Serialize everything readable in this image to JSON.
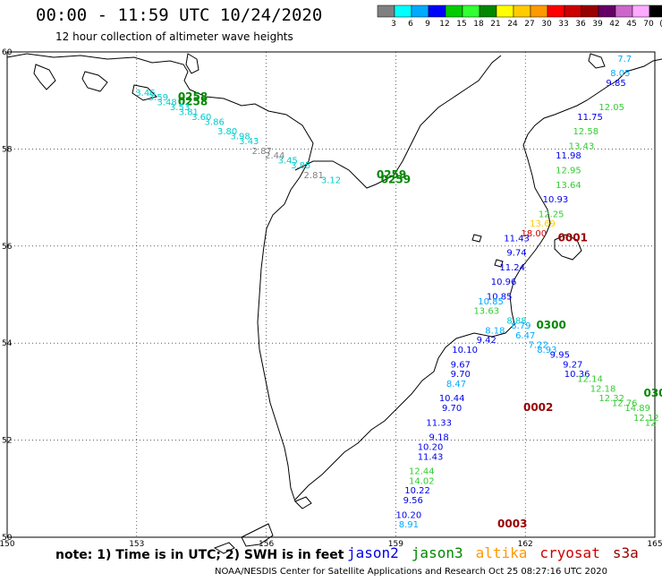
{
  "header": {
    "title": "00:00 - 11:59 UTC 10/24/2020",
    "subtitle": "12 hour collection of altimeter wave heights"
  },
  "colorbar": {
    "labels": [
      "3",
      "6",
      "9",
      "12",
      "15",
      "18",
      "21",
      "24",
      "27",
      "30",
      "33",
      "36",
      "39",
      "42",
      "45",
      "70",
      "(ft)"
    ],
    "colors": [
      "#808080",
      "#00ffff",
      "#00aaff",
      "#0000ff",
      "#00cc00",
      "#33ff33",
      "#008800",
      "#ffff00",
      "#ffcc00",
      "#ff9900",
      "#ff0000",
      "#cc0000",
      "#990000",
      "#660066",
      "#cc66cc",
      "#ffaaff",
      "#000000"
    ]
  },
  "footer": {
    "note": "note: 1) Time is in UTC; 2) SWH is in feet",
    "satellites": [
      {
        "name": "jason2",
        "color": "#0000ee"
      },
      {
        "name": "jason3",
        "color": "#008800"
      },
      {
        "name": "altika",
        "color": "#ff9900"
      },
      {
        "name": "cryosat",
        "color": "#cc0000"
      },
      {
        "name": "s3a",
        "color": "#990000"
      }
    ],
    "credit": "NOAA/NESDIS Center for Satellite Applications and Research     Oct 25 08:27:16 UTC 2020"
  },
  "chart_data": {
    "type": "scatter",
    "xlim": [
      150,
      165
    ],
    "ylim": [
      50,
      60
    ],
    "xticks": [
      "150",
      "153",
      "156",
      "159",
      "162",
      "165"
    ],
    "yticks": [
      "50",
      "52",
      "54",
      "56",
      "58",
      "60"
    ],
    "grid": true,
    "points": [
      {
        "lon": 162.6,
        "lat": 54.3,
        "text": "0300",
        "color": "#008800",
        "kind": "time"
      },
      {
        "lon": 158.9,
        "lat": 57.4,
        "text": "0259",
        "color": "#008800",
        "kind": "time"
      },
      {
        "lon": 159.0,
        "lat": 57.3,
        "text": "0259",
        "color": "#008800",
        "kind": "time"
      },
      {
        "lon": 154.3,
        "lat": 59.0,
        "text": "0258",
        "color": "#008800",
        "kind": "time"
      },
      {
        "lon": 154.3,
        "lat": 58.9,
        "text": "0258",
        "color": "#008800",
        "kind": "time"
      },
      {
        "lon": 163.1,
        "lat": 56.1,
        "text": "0001",
        "color": "#990000",
        "kind": "time"
      },
      {
        "lon": 162.3,
        "lat": 52.6,
        "text": "0002",
        "color": "#990000",
        "kind": "time"
      },
      {
        "lon": 161.7,
        "lat": 50.2,
        "text": "0003",
        "color": "#990000",
        "kind": "time"
      },
      {
        "lon": 165.0,
        "lat": 52.9,
        "text": "030",
        "color": "#008800",
        "kind": "time"
      },
      {
        "lon": 164.3,
        "lat": 59.8,
        "text": "7.7",
        "color": "#00aaff",
        "kind": "val"
      },
      {
        "lon": 164.2,
        "lat": 59.5,
        "text": "8.05",
        "color": "#00aaff",
        "kind": "val"
      },
      {
        "lon": 164.1,
        "lat": 59.3,
        "text": "9.85",
        "color": "#0000ee",
        "kind": "val"
      },
      {
        "lon": 164.0,
        "lat": 58.8,
        "text": "12.05",
        "color": "#33cc33",
        "kind": "val"
      },
      {
        "lon": 163.5,
        "lat": 58.6,
        "text": "11.75",
        "color": "#0000ee",
        "kind": "val"
      },
      {
        "lon": 163.4,
        "lat": 58.3,
        "text": "12.58",
        "color": "#33cc33",
        "kind": "val"
      },
      {
        "lon": 163.3,
        "lat": 58.0,
        "text": "13.43",
        "color": "#33cc33",
        "kind": "val"
      },
      {
        "lon": 163.0,
        "lat": 57.8,
        "text": "11.98",
        "color": "#0000ee",
        "kind": "val"
      },
      {
        "lon": 163.0,
        "lat": 57.5,
        "text": "12.95",
        "color": "#33cc33",
        "kind": "val"
      },
      {
        "lon": 163.0,
        "lat": 57.2,
        "text": "13.64",
        "color": "#33cc33",
        "kind": "val"
      },
      {
        "lon": 162.7,
        "lat": 56.9,
        "text": "10.93",
        "color": "#0000ee",
        "kind": "val"
      },
      {
        "lon": 162.6,
        "lat": 56.6,
        "text": "12.25",
        "color": "#33cc33",
        "kind": "val"
      },
      {
        "lon": 162.4,
        "lat": 56.4,
        "text": "13.69",
        "color": "#ffcc00",
        "kind": "val"
      },
      {
        "lon": 162.2,
        "lat": 56.2,
        "text": "18.00",
        "color": "#cc0000",
        "kind": "val"
      },
      {
        "lon": 161.8,
        "lat": 56.1,
        "text": "11.43",
        "color": "#0000ee",
        "kind": "val"
      },
      {
        "lon": 161.8,
        "lat": 55.8,
        "text": "9.74",
        "color": "#0000ee",
        "kind": "val"
      },
      {
        "lon": 161.7,
        "lat": 55.5,
        "text": "11.24",
        "color": "#0000ee",
        "kind": "val"
      },
      {
        "lon": 161.5,
        "lat": 55.2,
        "text": "10.96",
        "color": "#0000ee",
        "kind": "val"
      },
      {
        "lon": 161.4,
        "lat": 54.9,
        "text": "10.85",
        "color": "#0000ee",
        "kind": "val"
      },
      {
        "lon": 161.2,
        "lat": 54.8,
        "text": "10.85",
        "color": "#00aaff",
        "kind": "val"
      },
      {
        "lon": 161.1,
        "lat": 54.6,
        "text": "13.63",
        "color": "#33cc33",
        "kind": "val"
      },
      {
        "lon": 161.8,
        "lat": 54.4,
        "text": "8.88",
        "color": "#00cccc",
        "kind": "val"
      },
      {
        "lon": 161.9,
        "lat": 54.3,
        "text": "8.79",
        "color": "#00aaff",
        "kind": "val"
      },
      {
        "lon": 161.3,
        "lat": 54.2,
        "text": "8.18",
        "color": "#00aaff",
        "kind": "val"
      },
      {
        "lon": 162.0,
        "lat": 54.1,
        "text": "6.47",
        "color": "#00aaff",
        "kind": "val"
      },
      {
        "lon": 161.1,
        "lat": 54.0,
        "text": "9.42",
        "color": "#0000ee",
        "kind": "val"
      },
      {
        "lon": 162.3,
        "lat": 53.9,
        "text": "7.22",
        "color": "#00aaff",
        "kind": "val"
      },
      {
        "lon": 162.5,
        "lat": 53.8,
        "text": "8.93",
        "color": "#00aaff",
        "kind": "val"
      },
      {
        "lon": 160.6,
        "lat": 53.8,
        "text": "10.10",
        "color": "#0000ee",
        "kind": "val"
      },
      {
        "lon": 162.8,
        "lat": 53.7,
        "text": "9.95",
        "color": "#0000ee",
        "kind": "val"
      },
      {
        "lon": 163.1,
        "lat": 53.5,
        "text": "9.27",
        "color": "#0000ee",
        "kind": "val"
      },
      {
        "lon": 160.5,
        "lat": 53.5,
        "text": "9.67",
        "color": "#0000ee",
        "kind": "val"
      },
      {
        "lon": 163.2,
        "lat": 53.3,
        "text": "10.36",
        "color": "#0000ee",
        "kind": "val"
      },
      {
        "lon": 160.5,
        "lat": 53.3,
        "text": "9.70",
        "color": "#0000ee",
        "kind": "val"
      },
      {
        "lon": 163.5,
        "lat": 53.2,
        "text": "12.14",
        "color": "#33cc33",
        "kind": "val"
      },
      {
        "lon": 160.4,
        "lat": 53.1,
        "text": "8.47",
        "color": "#00aaff",
        "kind": "val"
      },
      {
        "lon": 163.8,
        "lat": 53.0,
        "text": "12.18",
        "color": "#33cc33",
        "kind": "val"
      },
      {
        "lon": 160.3,
        "lat": 52.8,
        "text": "10.44",
        "color": "#0000ee",
        "kind": "val"
      },
      {
        "lon": 164.0,
        "lat": 52.8,
        "text": "12.32",
        "color": "#33cc33",
        "kind": "val"
      },
      {
        "lon": 164.3,
        "lat": 52.7,
        "text": "12.76",
        "color": "#33cc33",
        "kind": "val"
      },
      {
        "lon": 160.3,
        "lat": 52.6,
        "text": "9.70",
        "color": "#0000ee",
        "kind": "val"
      },
      {
        "lon": 164.6,
        "lat": 52.6,
        "text": "14.89",
        "color": "#33cc33",
        "kind": "val"
      },
      {
        "lon": 164.8,
        "lat": 52.4,
        "text": "12.12",
        "color": "#33cc33",
        "kind": "val"
      },
      {
        "lon": 164.9,
        "lat": 52.3,
        "text": "12",
        "color": "#33cc33",
        "kind": "val"
      },
      {
        "lon": 160.0,
        "lat": 52.3,
        "text": "11.33",
        "color": "#0000ee",
        "kind": "val"
      },
      {
        "lon": 160.0,
        "lat": 52.0,
        "text": "9.18",
        "color": "#0000ee",
        "kind": "val"
      },
      {
        "lon": 159.8,
        "lat": 51.8,
        "text": "10.20",
        "color": "#0000ee",
        "kind": "val"
      },
      {
        "lon": 159.8,
        "lat": 51.6,
        "text": "11.43",
        "color": "#0000ee",
        "kind": "val"
      },
      {
        "lon": 159.6,
        "lat": 51.3,
        "text": "12.44",
        "color": "#33cc33",
        "kind": "val"
      },
      {
        "lon": 159.6,
        "lat": 51.1,
        "text": "14.02",
        "color": "#33cc33",
        "kind": "val"
      },
      {
        "lon": 159.5,
        "lat": 50.9,
        "text": "10.22",
        "color": "#0000ee",
        "kind": "val"
      },
      {
        "lon": 159.4,
        "lat": 50.7,
        "text": "9.56",
        "color": "#0000ee",
        "kind": "val"
      },
      {
        "lon": 159.3,
        "lat": 50.4,
        "text": "10.20",
        "color": "#0000ee",
        "kind": "val"
      },
      {
        "lon": 159.3,
        "lat": 50.2,
        "text": "8.91",
        "color": "#00aaff",
        "kind": "val"
      },
      {
        "lon": 153.2,
        "lat": 59.1,
        "text": "3.46",
        "color": "#00cccc",
        "kind": "val"
      },
      {
        "lon": 153.5,
        "lat": 59.0,
        "text": "3.59",
        "color": "#00cccc",
        "kind": "val"
      },
      {
        "lon": 153.7,
        "lat": 58.9,
        "text": "3.48",
        "color": "#00cccc",
        "kind": "val"
      },
      {
        "lon": 154.0,
        "lat": 58.8,
        "text": "3.53",
        "color": "#00cccc",
        "kind": "val"
      },
      {
        "lon": 154.2,
        "lat": 58.7,
        "text": "3.81",
        "color": "#00cccc",
        "kind": "val"
      },
      {
        "lon": 154.5,
        "lat": 58.6,
        "text": "3.60",
        "color": "#00cccc",
        "kind": "val"
      },
      {
        "lon": 154.8,
        "lat": 58.5,
        "text": "3.86",
        "color": "#00cccc",
        "kind": "val"
      },
      {
        "lon": 155.1,
        "lat": 58.3,
        "text": "3.80",
        "color": "#00cccc",
        "kind": "val"
      },
      {
        "lon": 155.4,
        "lat": 58.2,
        "text": "3.98",
        "color": "#00cccc",
        "kind": "val"
      },
      {
        "lon": 155.6,
        "lat": 58.1,
        "text": "3.43",
        "color": "#00cccc",
        "kind": "val"
      },
      {
        "lon": 155.9,
        "lat": 57.9,
        "text": "2.87",
        "color": "#808080",
        "kind": "val"
      },
      {
        "lon": 156.2,
        "lat": 57.8,
        "text": "2.44",
        "color": "#808080",
        "kind": "val"
      },
      {
        "lon": 156.5,
        "lat": 57.7,
        "text": "3.45",
        "color": "#00cccc",
        "kind": "val"
      },
      {
        "lon": 156.8,
        "lat": 57.6,
        "text": "3.85",
        "color": "#00cccc",
        "kind": "val"
      },
      {
        "lon": 157.1,
        "lat": 57.4,
        "text": "2.81",
        "color": "#808080",
        "kind": "val"
      },
      {
        "lon": 157.5,
        "lat": 57.3,
        "text": "3.12",
        "color": "#00cccc",
        "kind": "val"
      }
    ]
  }
}
